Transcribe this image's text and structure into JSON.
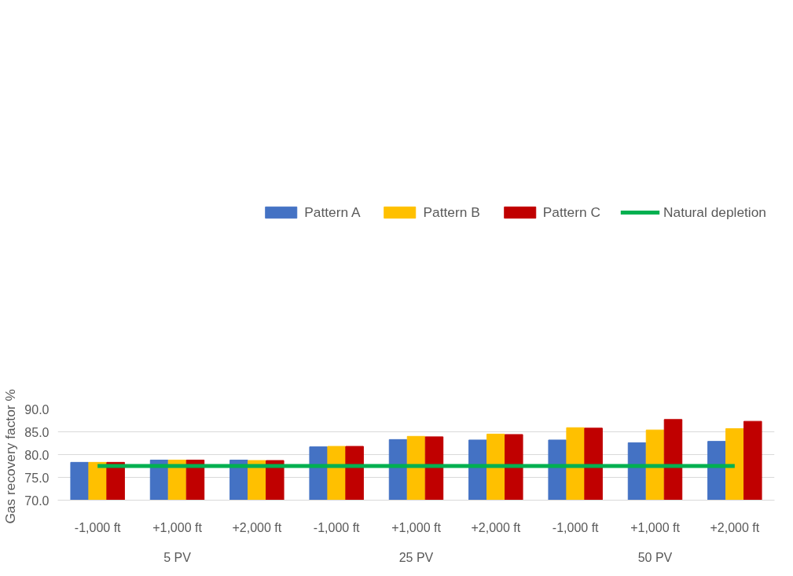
{
  "chart_data": {
    "type": "bar",
    "ylabel": "Gas recovery factor  %",
    "categories": [
      "-1,000 ft",
      "+1,000 ft",
      "+2,000 ft",
      "-1,000 ft",
      "+1,000 ft",
      "+2,000 ft",
      "-1,000 ft",
      "+1,000 ft",
      "+2,000 ft"
    ],
    "annotations": [
      "5 PV",
      "25 PV",
      "50 PV"
    ],
    "series": [
      {
        "name": "Pattern A",
        "color": "#4472c4",
        "values": [
          78.3,
          78.8,
          78.8,
          81.7,
          83.3,
          83.2,
          83.2,
          82.6,
          82.9
        ]
      },
      {
        "name": "Pattern B",
        "color": "#ffc000",
        "values": [
          78.3,
          78.8,
          78.7,
          81.8,
          84.0,
          84.5,
          85.9,
          85.4,
          85.7
        ]
      },
      {
        "name": "Pattern C",
        "color": "#c00000",
        "values": [
          78.3,
          78.8,
          78.7,
          81.8,
          83.9,
          84.4,
          85.8,
          87.7,
          87.3
        ]
      },
      {
        "name": "Natural depletion",
        "type": "line",
        "color": "#00b050",
        "values": [
          77.5,
          77.5,
          77.5,
          77.5,
          77.5,
          77.5,
          77.5,
          77.5,
          77.5
        ]
      }
    ],
    "ylim": [
      70,
      90
    ],
    "yticks": [
      {
        "value": 70,
        "label": "70.0"
      },
      {
        "value": 75,
        "label": "75.0"
      },
      {
        "value": 80,
        "label": "80.0"
      },
      {
        "value": 85,
        "label": "85.0"
      },
      {
        "value": 90,
        "label": "90.0"
      }
    ],
    "grid": "y",
    "legend": "top"
  }
}
